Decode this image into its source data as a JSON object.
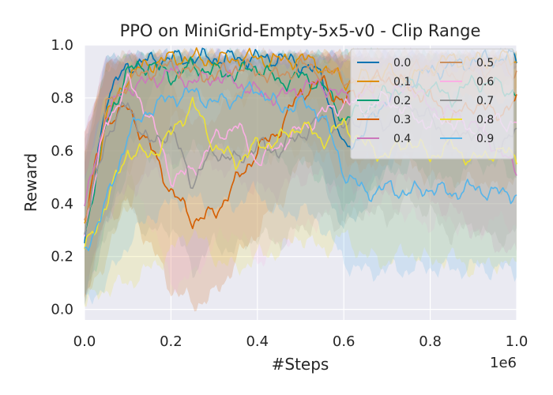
{
  "chart_data": {
    "type": "line",
    "title": "PPO on MiniGrid-Empty-5x5-v0 - Clip Range",
    "xlabel": "#Steps",
    "ylabel": "Reward",
    "x_offset_label": "1e6",
    "xlim": [
      0.0,
      1.0
    ],
    "ylim": [
      -0.04,
      1.0
    ],
    "xticks": [
      {
        "value": 0.0,
        "label": "0.0"
      },
      {
        "value": 0.2,
        "label": "0.2"
      },
      {
        "value": 0.4,
        "label": "0.4"
      },
      {
        "value": 0.6,
        "label": "0.6"
      },
      {
        "value": 0.8,
        "label": "0.8"
      },
      {
        "value": 1.0,
        "label": "1.0"
      }
    ],
    "yticks": [
      {
        "value": 0.0,
        "label": "0.0"
      },
      {
        "value": 0.2,
        "label": "0.2"
      },
      {
        "value": 0.4,
        "label": "0.4"
      },
      {
        "value": 0.6,
        "label": "0.6"
      },
      {
        "value": 0.8,
        "label": "0.8"
      },
      {
        "value": 1.0,
        "label": "1.0"
      }
    ],
    "grid": true,
    "legend_position": "top-right",
    "legend_columns": 2,
    "x": [
      0.0,
      0.05,
      0.1,
      0.15,
      0.2,
      0.25,
      0.3,
      0.35,
      0.4,
      0.45,
      0.5,
      0.55,
      0.6,
      0.65,
      0.7,
      0.75,
      0.8,
      0.85,
      0.9,
      0.95,
      1.0
    ],
    "series": [
      {
        "name": "0.0",
        "color": "#0173b2",
        "values": [
          0.25,
          0.8,
          0.92,
          0.94,
          0.95,
          0.95,
          0.95,
          0.95,
          0.95,
          0.95,
          0.93,
          0.88,
          0.6,
          0.68,
          0.8,
          0.86,
          0.9,
          0.92,
          0.94,
          0.95,
          0.95
        ],
        "lower": [
          0.05,
          0.35,
          0.6,
          0.8,
          0.88,
          0.9,
          0.9,
          0.9,
          0.9,
          0.88,
          0.7,
          0.5,
          0.3,
          0.4,
          0.55,
          0.65,
          0.7,
          0.75,
          0.8,
          0.85,
          0.88
        ],
        "upper": [
          0.55,
          0.95,
          0.96,
          0.96,
          0.96,
          0.96,
          0.96,
          0.96,
          0.96,
          0.96,
          0.96,
          0.96,
          0.95,
          0.95,
          0.96,
          0.96,
          0.96,
          0.96,
          0.96,
          0.96,
          0.96
        ]
      },
      {
        "name": "0.1",
        "color": "#de8f05",
        "values": [
          0.3,
          0.72,
          0.88,
          0.93,
          0.95,
          0.95,
          0.94,
          0.95,
          0.95,
          0.94,
          0.95,
          0.92,
          0.86,
          0.88,
          0.9,
          0.86,
          0.92,
          0.95,
          0.94,
          0.95,
          0.95
        ],
        "lower": [
          0.02,
          0.2,
          0.4,
          0.55,
          0.7,
          0.78,
          0.8,
          0.8,
          0.82,
          0.8,
          0.8,
          0.75,
          0.65,
          0.7,
          0.75,
          0.7,
          0.78,
          0.82,
          0.8,
          0.82,
          0.85
        ],
        "upper": [
          0.6,
          0.92,
          0.95,
          0.96,
          0.96,
          0.96,
          0.96,
          0.96,
          0.96,
          0.96,
          0.96,
          0.96,
          0.96,
          0.96,
          0.96,
          0.96,
          0.96,
          0.96,
          0.96,
          0.96,
          0.96
        ]
      },
      {
        "name": "0.2",
        "color": "#029e73",
        "values": [
          0.28,
          0.7,
          0.9,
          0.93,
          0.88,
          0.92,
          0.9,
          0.89,
          0.92,
          0.86,
          0.88,
          0.85,
          0.72,
          0.76,
          0.82,
          0.85,
          0.84,
          0.8,
          0.86,
          0.85,
          0.82
        ],
        "lower": [
          0.05,
          0.3,
          0.55,
          0.6,
          0.55,
          0.6,
          0.6,
          0.58,
          0.6,
          0.55,
          0.55,
          0.5,
          0.4,
          0.45,
          0.5,
          0.55,
          0.5,
          0.48,
          0.55,
          0.55,
          0.5
        ],
        "upper": [
          0.6,
          0.92,
          0.96,
          0.96,
          0.96,
          0.96,
          0.96,
          0.96,
          0.96,
          0.96,
          0.96,
          0.96,
          0.96,
          0.96,
          0.96,
          0.96,
          0.96,
          0.96,
          0.96,
          0.96,
          0.96
        ]
      },
      {
        "name": "0.3",
        "color": "#d55e00",
        "values": [
          0.35,
          0.72,
          0.76,
          0.62,
          0.45,
          0.34,
          0.36,
          0.48,
          0.6,
          0.68,
          0.82,
          0.86,
          0.78,
          0.85,
          0.88,
          0.84,
          0.8,
          0.72,
          0.78,
          0.74,
          0.78
        ],
        "lower": [
          0.05,
          0.35,
          0.4,
          0.25,
          0.08,
          0.02,
          0.05,
          0.18,
          0.3,
          0.4,
          0.55,
          0.6,
          0.5,
          0.55,
          0.6,
          0.55,
          0.5,
          0.45,
          0.5,
          0.45,
          0.5
        ],
        "upper": [
          0.65,
          0.92,
          0.94,
          0.92,
          0.85,
          0.7,
          0.72,
          0.82,
          0.9,
          0.94,
          0.96,
          0.96,
          0.96,
          0.96,
          0.96,
          0.96,
          0.96,
          0.96,
          0.96,
          0.96,
          0.96
        ]
      },
      {
        "name": "0.4",
        "color": "#cc78bc",
        "values": [
          0.38,
          0.74,
          0.84,
          0.86,
          0.9,
          0.86,
          0.88,
          0.86,
          0.82,
          0.8,
          0.84,
          0.85,
          0.8,
          0.82,
          0.78,
          0.86,
          0.76,
          0.74,
          0.7,
          0.62,
          0.52
        ],
        "lower": [
          0.05,
          0.35,
          0.45,
          0.5,
          0.55,
          0.5,
          0.55,
          0.5,
          0.45,
          0.45,
          0.5,
          0.5,
          0.45,
          0.48,
          0.45,
          0.5,
          0.4,
          0.38,
          0.3,
          0.25,
          0.2
        ],
        "upper": [
          0.68,
          0.94,
          0.96,
          0.96,
          0.96,
          0.96,
          0.96,
          0.96,
          0.96,
          0.96,
          0.96,
          0.96,
          0.96,
          0.96,
          0.96,
          0.96,
          0.96,
          0.96,
          0.96,
          0.96,
          0.9
        ]
      },
      {
        "name": "0.5",
        "color": "#ca9161",
        "values": [
          0.32,
          0.76,
          0.86,
          0.9,
          0.92,
          0.9,
          0.88,
          0.92,
          0.9,
          0.88,
          0.92,
          0.9,
          0.88,
          0.84,
          0.86,
          0.9,
          0.92,
          0.88,
          0.9,
          0.92,
          0.9
        ],
        "lower": [
          0.05,
          0.4,
          0.55,
          0.6,
          0.62,
          0.6,
          0.58,
          0.62,
          0.6,
          0.58,
          0.62,
          0.6,
          0.58,
          0.55,
          0.56,
          0.6,
          0.62,
          0.58,
          0.6,
          0.62,
          0.6
        ],
        "upper": [
          0.6,
          0.94,
          0.96,
          0.96,
          0.96,
          0.96,
          0.96,
          0.96,
          0.96,
          0.96,
          0.96,
          0.96,
          0.96,
          0.96,
          0.96,
          0.96,
          0.96,
          0.96,
          0.96,
          0.96,
          0.96
        ]
      },
      {
        "name": "0.6",
        "color": "#fbafe4",
        "values": [
          0.3,
          0.7,
          0.86,
          0.74,
          0.5,
          0.52,
          0.64,
          0.7,
          0.56,
          0.62,
          0.68,
          0.74,
          0.78,
          0.76,
          0.8,
          0.74,
          0.7,
          0.72,
          0.66,
          0.72,
          0.7
        ],
        "lower": [
          0.05,
          0.3,
          0.5,
          0.35,
          0.1,
          0.12,
          0.25,
          0.3,
          0.18,
          0.25,
          0.3,
          0.35,
          0.4,
          0.38,
          0.42,
          0.35,
          0.32,
          0.34,
          0.28,
          0.34,
          0.32
        ],
        "upper": [
          0.6,
          0.92,
          0.96,
          0.94,
          0.88,
          0.9,
          0.93,
          0.94,
          0.92,
          0.93,
          0.94,
          0.95,
          0.96,
          0.96,
          0.96,
          0.95,
          0.94,
          0.95,
          0.94,
          0.95,
          0.94
        ]
      },
      {
        "name": "0.7",
        "color": "#949494",
        "values": [
          0.3,
          0.66,
          0.78,
          0.62,
          0.68,
          0.48,
          0.6,
          0.56,
          0.62,
          0.6,
          0.66,
          0.72,
          0.68,
          0.74,
          0.7,
          0.78,
          0.72,
          0.64,
          0.68,
          0.62,
          0.66
        ],
        "lower": [
          0.05,
          0.28,
          0.4,
          0.28,
          0.32,
          0.15,
          0.25,
          0.22,
          0.28,
          0.25,
          0.3,
          0.35,
          0.32,
          0.38,
          0.34,
          0.42,
          0.36,
          0.28,
          0.32,
          0.26,
          0.3
        ],
        "upper": [
          0.62,
          0.92,
          0.95,
          0.92,
          0.93,
          0.88,
          0.92,
          0.9,
          0.92,
          0.92,
          0.94,
          0.95,
          0.94,
          0.95,
          0.94,
          0.96,
          0.95,
          0.93,
          0.94,
          0.93,
          0.94
        ]
      },
      {
        "name": "0.8",
        "color": "#ece133",
        "values": [
          0.22,
          0.4,
          0.6,
          0.58,
          0.66,
          0.78,
          0.62,
          0.56,
          0.62,
          0.64,
          0.7,
          0.64,
          0.7,
          0.62,
          0.58,
          0.64,
          0.58,
          0.62,
          0.56,
          0.6,
          0.58
        ],
        "lower": [
          0.02,
          0.08,
          0.1,
          0.15,
          0.22,
          0.3,
          0.2,
          0.15,
          0.2,
          0.22,
          0.28,
          0.22,
          0.28,
          0.2,
          0.18,
          0.22,
          0.18,
          0.2,
          0.15,
          0.18,
          0.16
        ],
        "upper": [
          0.5,
          0.8,
          0.92,
          0.9,
          0.93,
          0.95,
          0.92,
          0.9,
          0.92,
          0.93,
          0.94,
          0.93,
          0.94,
          0.92,
          0.9,
          0.92,
          0.9,
          0.92,
          0.9,
          0.91,
          0.9
        ]
      },
      {
        "name": "0.9",
        "color": "#56b4e9",
        "values": [
          0.22,
          0.4,
          0.66,
          0.76,
          0.8,
          0.82,
          0.78,
          0.8,
          0.84,
          0.76,
          0.78,
          0.74,
          0.52,
          0.44,
          0.46,
          0.44,
          0.46,
          0.44,
          0.46,
          0.44,
          0.44
        ],
        "lower": [
          0.02,
          0.1,
          0.25,
          0.35,
          0.4,
          0.42,
          0.38,
          0.4,
          0.45,
          0.35,
          0.38,
          0.32,
          0.18,
          0.14,
          0.15,
          0.15,
          0.16,
          0.15,
          0.16,
          0.15,
          0.15
        ],
        "upper": [
          0.5,
          0.8,
          0.92,
          0.95,
          0.96,
          0.96,
          0.95,
          0.96,
          0.96,
          0.95,
          0.96,
          0.95,
          0.88,
          0.8,
          0.82,
          0.8,
          0.82,
          0.8,
          0.82,
          0.8,
          0.8
        ]
      }
    ]
  }
}
